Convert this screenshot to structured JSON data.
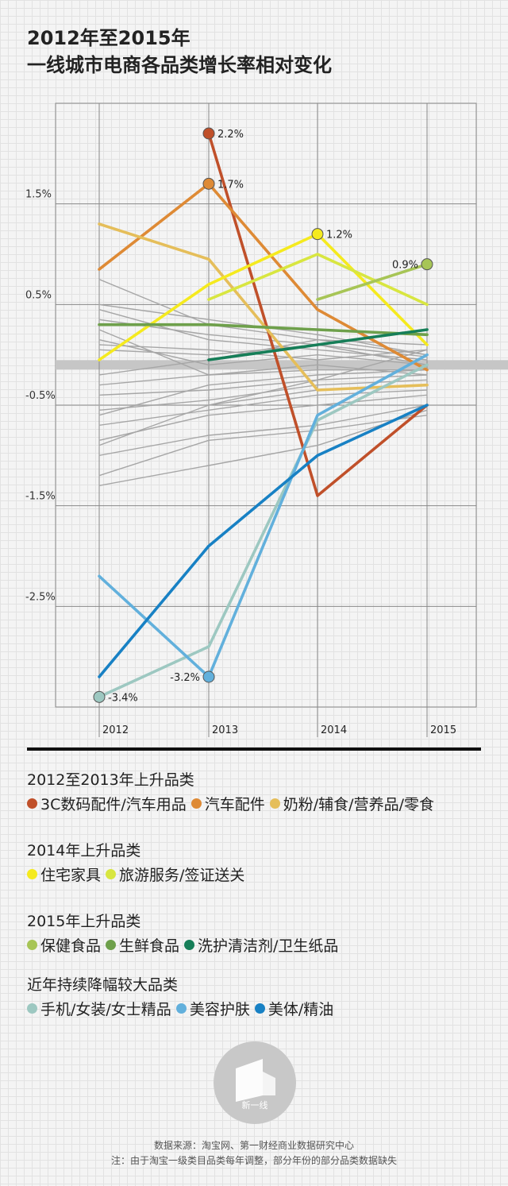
{
  "title": {
    "line1": "2012年至2015年",
    "line2": "一线城市电商各品类增长率相对变化"
  },
  "chart_data": {
    "type": "line",
    "x": [
      2012,
      2013,
      2014,
      2015
    ],
    "x_tick_labels": [
      "2012",
      "2013",
      "2014",
      "2015"
    ],
    "y_tick_values": [
      1.5,
      0.5,
      -0.5,
      -1.5,
      -2.5
    ],
    "y_tick_labels": [
      "1.5%",
      "0.5%",
      "-0.5%",
      "-1.5%",
      "-2.5%"
    ],
    "ylim": [
      -3.5,
      2.5
    ],
    "grid": true,
    "highlight_band_value": -0.1,
    "series": [
      {
        "name": "3C数码配件/汽车用品",
        "color": "#c0502a",
        "values": [
          null,
          2.2,
          -1.4,
          -0.5
        ]
      },
      {
        "name": "汽车配件",
        "color": "#de8a35",
        "values": [
          0.85,
          1.7,
          0.45,
          -0.15
        ]
      },
      {
        "name": "奶粉/辅食/营养品/零食",
        "color": "#e5be5a",
        "values": [
          1.3,
          0.95,
          -0.35,
          -0.3
        ]
      },
      {
        "name": "住宅家具",
        "color": "#f5ea1e",
        "values": [
          -0.05,
          0.7,
          1.2,
          0.1
        ]
      },
      {
        "name": "旅游服务/签证送关",
        "color": "#d8e640",
        "values": [
          null,
          0.55,
          1.0,
          0.5
        ]
      },
      {
        "name": "保健食品",
        "color": "#a7c556",
        "values": [
          null,
          null,
          0.55,
          0.9
        ]
      },
      {
        "name": "生鲜食品",
        "color": "#6ea04b",
        "values": [
          0.3,
          0.3,
          0.25,
          0.2
        ]
      },
      {
        "name": "洗护清洁剂/卫生纸品",
        "color": "#167e58",
        "values": [
          null,
          -0.05,
          0.1,
          0.25
        ]
      },
      {
        "name": "手机/女装/女士精品",
        "color": "#9dc8c1",
        "values": [
          -3.4,
          -2.9,
          -0.65,
          -0.1
        ]
      },
      {
        "name": "美容护肤",
        "color": "#62b0dc",
        "values": [
          -2.2,
          -3.2,
          -0.6,
          0.0
        ]
      },
      {
        "name": "美体/精油",
        "color": "#1881c4",
        "values": [
          -3.2,
          -1.9,
          -1.0,
          -0.5
        ]
      }
    ],
    "background_series": [
      [
        0.75,
        0.3,
        0.15,
        0.1
      ],
      [
        0.5,
        0.35,
        0.2,
        0.0
      ],
      [
        0.45,
        0.15,
        0.05,
        -0.05
      ],
      [
        0.35,
        0.2,
        0.1,
        -0.02
      ],
      [
        0.25,
        -0.2,
        -0.1,
        -0.2
      ],
      [
        0.15,
        -0.1,
        0.0,
        -0.1
      ],
      [
        0.1,
        0.05,
        -0.05,
        0.05
      ],
      [
        -0.2,
        -0.05,
        0.15,
        0.0
      ],
      [
        -0.3,
        -0.2,
        -0.15,
        -0.15
      ],
      [
        -0.4,
        -0.35,
        -0.25,
        -0.2
      ],
      [
        -0.5,
        -0.5,
        -0.35,
        -0.3
      ],
      [
        -0.55,
        -0.45,
        -0.3,
        -0.25
      ],
      [
        -0.7,
        -0.55,
        -0.4,
        -0.35
      ],
      [
        -0.85,
        -0.6,
        -0.5,
        -0.4
      ],
      [
        -1.0,
        -0.8,
        -0.7,
        -0.5
      ],
      [
        -1.2,
        -0.85,
        -0.75,
        -0.6
      ],
      [
        -1.3,
        -1.1,
        -0.9,
        -0.55
      ],
      [
        -0.9,
        -0.5,
        -0.25,
        0.05
      ],
      [
        -0.6,
        -0.3,
        -0.2,
        -0.15
      ],
      [
        0.05,
        0.0,
        0.1,
        -0.1
      ]
    ],
    "annotations": [
      {
        "series_index": 0,
        "point_index": 1,
        "text": "2.2%",
        "side": "right"
      },
      {
        "series_index": 1,
        "point_index": 1,
        "text": "1.7%",
        "side": "right"
      },
      {
        "series_index": 3,
        "point_index": 2,
        "text": "1.2%",
        "side": "right"
      },
      {
        "series_index": 5,
        "point_index": 3,
        "text": "0.9%",
        "side": "left"
      },
      {
        "series_index": 9,
        "point_index": 1,
        "text": "-3.2%",
        "side": "left"
      },
      {
        "series_index": 8,
        "point_index": 0,
        "text": "-3.4%",
        "side": "right"
      }
    ],
    "colors": {
      "grid": "#888888",
      "background_line": "#a6a6a6",
      "band": "#c6c6c6"
    }
  },
  "legend_groups": [
    {
      "title": "2012至2013年上升品类",
      "items": [
        {
          "label": "3C数码配件/汽车用品",
          "color": "#c0502a"
        },
        {
          "label": "汽车配件",
          "color": "#de8a35"
        },
        {
          "label": "奶粉/辅食/营养品/零食",
          "color": "#e5be5a"
        }
      ]
    },
    {
      "title": "2014年上升品类",
      "items": [
        {
          "label": "住宅家具",
          "color": "#f5ea1e"
        },
        {
          "label": "旅游服务/签证送关",
          "color": "#d8e640"
        }
      ]
    },
    {
      "title": "2015年上升品类",
      "items": [
        {
          "label": "保健食品",
          "color": "#a7c556"
        },
        {
          "label": "生鲜食品",
          "color": "#6ea04b"
        },
        {
          "label": "洗护清洁剂/卫生纸品",
          "color": "#167e58"
        }
      ]
    },
    {
      "title": "近年持续降幅较大品类",
      "items": [
        {
          "label": "手机/女装/女士精品",
          "color": "#9dc8c1"
        },
        {
          "label": "美容护肤",
          "color": "#62b0dc"
        },
        {
          "label": "美体/精油",
          "color": "#1881c4"
        }
      ]
    }
  ],
  "logo": {
    "text": "新一线"
  },
  "footer": {
    "source": "数据来源：淘宝网、第一财经商业数据研究中心",
    "note": "注：由于淘宝一级类目品类每年调整，部分年份的部分品类数据缺失"
  }
}
